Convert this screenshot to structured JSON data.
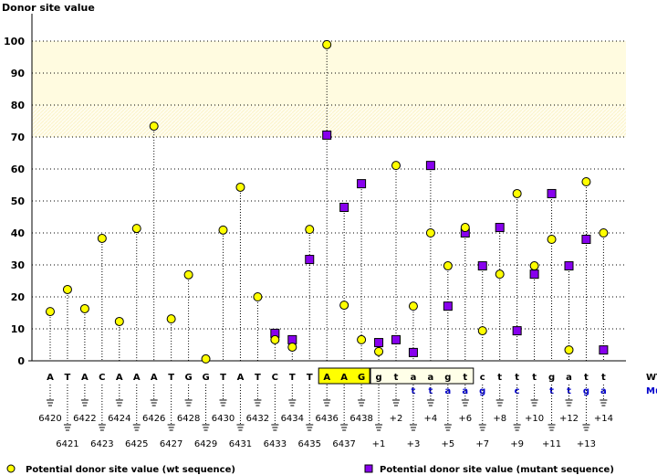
{
  "chart_data": {
    "type": "scatter",
    "title": "Donor site value",
    "ylabel": "Donor site value",
    "ylim": [
      0,
      100
    ],
    "yticks": [
      0,
      10,
      20,
      30,
      40,
      50,
      60,
      70,
      80,
      90,
      100
    ],
    "grid": true,
    "highlight_band": [
      70,
      100
    ],
    "positions": [
      "6420",
      "6421",
      "6422",
      "6423",
      "6424",
      "6425",
      "6426",
      "6427",
      "6428",
      "6429",
      "6430",
      "6431",
      "6432",
      "6433",
      "6434",
      "6435",
      "6436",
      "6437",
      "6438",
      "+1",
      "+2",
      "+3",
      "+4",
      "+5",
      "+6",
      "+7",
      "+8",
      "+9",
      "+10",
      "+11",
      "+12",
      "+13",
      "+14"
    ],
    "wt_sequence": [
      "A",
      "T",
      "A",
      "C",
      "A",
      "A",
      "A",
      "T",
      "G",
      "G",
      "T",
      "A",
      "T",
      "C",
      "T",
      "T",
      "A",
      "A",
      "G",
      "g",
      "t",
      "a",
      "a",
      "g",
      "t",
      "c",
      "t",
      "t",
      "t",
      "g",
      "a",
      "t",
      "t"
    ],
    "mutant_sequence": [
      "",
      "",
      "",
      "",
      "",
      "",
      "",
      "",
      "",
      "",
      "",
      "",
      "",
      "",
      "",
      "",
      "",
      "",
      "",
      "",
      "",
      "t",
      "t",
      "a",
      "a",
      "g",
      "",
      "c",
      "",
      "t",
      "t",
      "g",
      "a"
    ],
    "exon_box": {
      "start": 16,
      "end": 18
    },
    "intron_box": {
      "start": 19,
      "end": 24
    },
    "row_labels": {
      "wt": "WT",
      "mutant": "Mutant"
    },
    "series": [
      {
        "name": "Potential donor site value (wt sequence)",
        "color": "#ffff00",
        "marker": "circle",
        "values": [
          15.4,
          22.3,
          16.3,
          38.3,
          12.3,
          41.4,
          73.4,
          13.1,
          26.9,
          0.6,
          40.9,
          54.3,
          20,
          6.6,
          4.3,
          41.1,
          98.9,
          17.4,
          6.6,
          2.9,
          61.1,
          17.1,
          40,
          29.7,
          41.7,
          9.4,
          27.1,
          52.3,
          29.7,
          38,
          3.4,
          56,
          40
        ]
      },
      {
        "name": "Potential donor site value (mutant sequence)",
        "color": "#8800ee",
        "marker": "square",
        "values": [
          null,
          null,
          null,
          null,
          null,
          null,
          null,
          null,
          null,
          null,
          null,
          null,
          null,
          8.6,
          6.6,
          31.7,
          70.6,
          48,
          55.4,
          5.7,
          6.6,
          2.6,
          61.1,
          17.1,
          40,
          29.7,
          41.7,
          9.4,
          27.1,
          52.3,
          29.7,
          38,
          3.4
        ]
      }
    ],
    "legend_placement": "bottom"
  }
}
